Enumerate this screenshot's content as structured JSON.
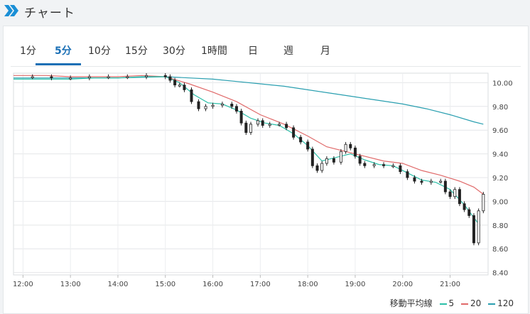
{
  "header": {
    "title": "チャート",
    "icon": "double-chevron-icon"
  },
  "tabs": [
    {
      "label": "1分",
      "active": false
    },
    {
      "label": "5分",
      "active": true
    },
    {
      "label": "10分",
      "active": false
    },
    {
      "label": "15分",
      "active": false
    },
    {
      "label": "30分",
      "active": false
    },
    {
      "label": "1時間",
      "active": false
    },
    {
      "label": "日",
      "active": false
    },
    {
      "label": "週",
      "active": false
    },
    {
      "label": "月",
      "active": false
    }
  ],
  "legend": {
    "label": "移動平均線",
    "ma5": "5",
    "ma20": "20",
    "ma120": "120"
  },
  "colors": {
    "accent": "#1a6fb5",
    "ma5": "#2bbfa8",
    "ma20": "#e06a6a",
    "ma120": "#2a9fb0",
    "candle": "#222222"
  },
  "chart_data": {
    "type": "candlestick",
    "x_ticks": [
      "12:00",
      "13:00",
      "14:00",
      "15:00",
      "16:00",
      "17:00",
      "18:00",
      "19:00",
      "20:00",
      "21:00"
    ],
    "y_ticks": [
      "10.00",
      "9.80",
      "9.60",
      "9.40",
      "9.20",
      "9.00",
      "8.80",
      "8.60",
      "8.40"
    ],
    "ylim": [
      8.38,
      10.08
    ],
    "x_range_hours": [
      11.8,
      21.8
    ],
    "close_series": [
      [
        11.8,
        10.05
      ],
      [
        12.2,
        10.05
      ],
      [
        12.6,
        10.04
      ],
      [
        13.0,
        10.04
      ],
      [
        13.4,
        10.05
      ],
      [
        13.8,
        10.05
      ],
      [
        14.2,
        10.05
      ],
      [
        14.6,
        10.06
      ],
      [
        15.0,
        10.05
      ],
      [
        15.1,
        10.02
      ],
      [
        15.2,
        9.98
      ],
      [
        15.3,
        9.98
      ],
      [
        15.4,
        9.94
      ],
      [
        15.55,
        9.84
      ],
      [
        15.7,
        9.78
      ],
      [
        15.85,
        9.8
      ],
      [
        16.0,
        9.81
      ],
      [
        16.2,
        9.82
      ],
      [
        16.4,
        9.8
      ],
      [
        16.5,
        9.76
      ],
      [
        16.6,
        9.66
      ],
      [
        16.7,
        9.58
      ],
      [
        16.8,
        9.65
      ],
      [
        16.95,
        9.68
      ],
      [
        17.05,
        9.64
      ],
      [
        17.2,
        9.65
      ],
      [
        17.4,
        9.65
      ],
      [
        17.55,
        9.62
      ],
      [
        17.7,
        9.54
      ],
      [
        17.85,
        9.5
      ],
      [
        18.0,
        9.44
      ],
      [
        18.1,
        9.3
      ],
      [
        18.2,
        9.26
      ],
      [
        18.3,
        9.32
      ],
      [
        18.4,
        9.36
      ],
      [
        18.55,
        9.33
      ],
      [
        18.7,
        9.42
      ],
      [
        18.8,
        9.48
      ],
      [
        18.9,
        9.45
      ],
      [
        19.0,
        9.38
      ],
      [
        19.1,
        9.32
      ],
      [
        19.2,
        9.3
      ],
      [
        19.4,
        9.31
      ],
      [
        19.6,
        9.3
      ],
      [
        19.8,
        9.3
      ],
      [
        19.95,
        9.25
      ],
      [
        20.1,
        9.2
      ],
      [
        20.25,
        9.17
      ],
      [
        20.4,
        9.16
      ],
      [
        20.6,
        9.17
      ],
      [
        20.8,
        9.17
      ],
      [
        20.9,
        9.08
      ],
      [
        21.0,
        9.04
      ],
      [
        21.1,
        9.1
      ],
      [
        21.2,
        8.98
      ],
      [
        21.3,
        8.93
      ],
      [
        21.4,
        8.88
      ],
      [
        21.5,
        8.65
      ],
      [
        21.6,
        8.92
      ],
      [
        21.7,
        9.06
      ]
    ],
    "ma5": [
      [
        11.8,
        10.03
      ],
      [
        12.5,
        10.03
      ],
      [
        13.0,
        10.03
      ],
      [
        13.5,
        10.04
      ],
      [
        14.0,
        10.04
      ],
      [
        14.5,
        10.05
      ],
      [
        15.0,
        10.05
      ],
      [
        15.3,
        10.0
      ],
      [
        15.6,
        9.9
      ],
      [
        15.9,
        9.83
      ],
      [
        16.2,
        9.82
      ],
      [
        16.5,
        9.77
      ],
      [
        16.8,
        9.7
      ],
      [
        17.1,
        9.66
      ],
      [
        17.4,
        9.64
      ],
      [
        17.7,
        9.57
      ],
      [
        18.0,
        9.47
      ],
      [
        18.3,
        9.34
      ],
      [
        18.6,
        9.37
      ],
      [
        18.9,
        9.4
      ],
      [
        19.2,
        9.35
      ],
      [
        19.5,
        9.31
      ],
      [
        19.8,
        9.3
      ],
      [
        20.1,
        9.24
      ],
      [
        20.4,
        9.18
      ],
      [
        20.7,
        9.16
      ],
      [
        21.0,
        9.1
      ],
      [
        21.3,
        8.97
      ],
      [
        21.6,
        8.81
      ]
    ],
    "ma20": [
      [
        11.8,
        10.06
      ],
      [
        12.5,
        10.06
      ],
      [
        13.0,
        10.05
      ],
      [
        13.5,
        10.05
      ],
      [
        14.0,
        10.05
      ],
      [
        14.5,
        10.06
      ],
      [
        15.0,
        10.05
      ],
      [
        15.5,
        9.99
      ],
      [
        16.0,
        9.92
      ],
      [
        16.5,
        9.84
      ],
      [
        17.0,
        9.73
      ],
      [
        17.5,
        9.65
      ],
      [
        18.0,
        9.55
      ],
      [
        18.4,
        9.46
      ],
      [
        18.8,
        9.42
      ],
      [
        19.2,
        9.38
      ],
      [
        19.6,
        9.34
      ],
      [
        20.0,
        9.32
      ],
      [
        20.4,
        9.26
      ],
      [
        20.8,
        9.22
      ],
      [
        21.2,
        9.17
      ],
      [
        21.5,
        9.12
      ],
      [
        21.7,
        9.06
      ]
    ],
    "ma120": [
      [
        11.8,
        10.04
      ],
      [
        13.0,
        10.04
      ],
      [
        14.0,
        10.04
      ],
      [
        15.0,
        10.05
      ],
      [
        15.5,
        10.04
      ],
      [
        16.0,
        10.03
      ],
      [
        16.5,
        10.01
      ],
      [
        17.0,
        9.99
      ],
      [
        17.5,
        9.97
      ],
      [
        18.0,
        9.94
      ],
      [
        18.5,
        9.91
      ],
      [
        19.0,
        9.88
      ],
      [
        19.5,
        9.85
      ],
      [
        20.0,
        9.82
      ],
      [
        20.5,
        9.78
      ],
      [
        21.0,
        9.73
      ],
      [
        21.5,
        9.67
      ],
      [
        21.7,
        9.65
      ]
    ]
  }
}
